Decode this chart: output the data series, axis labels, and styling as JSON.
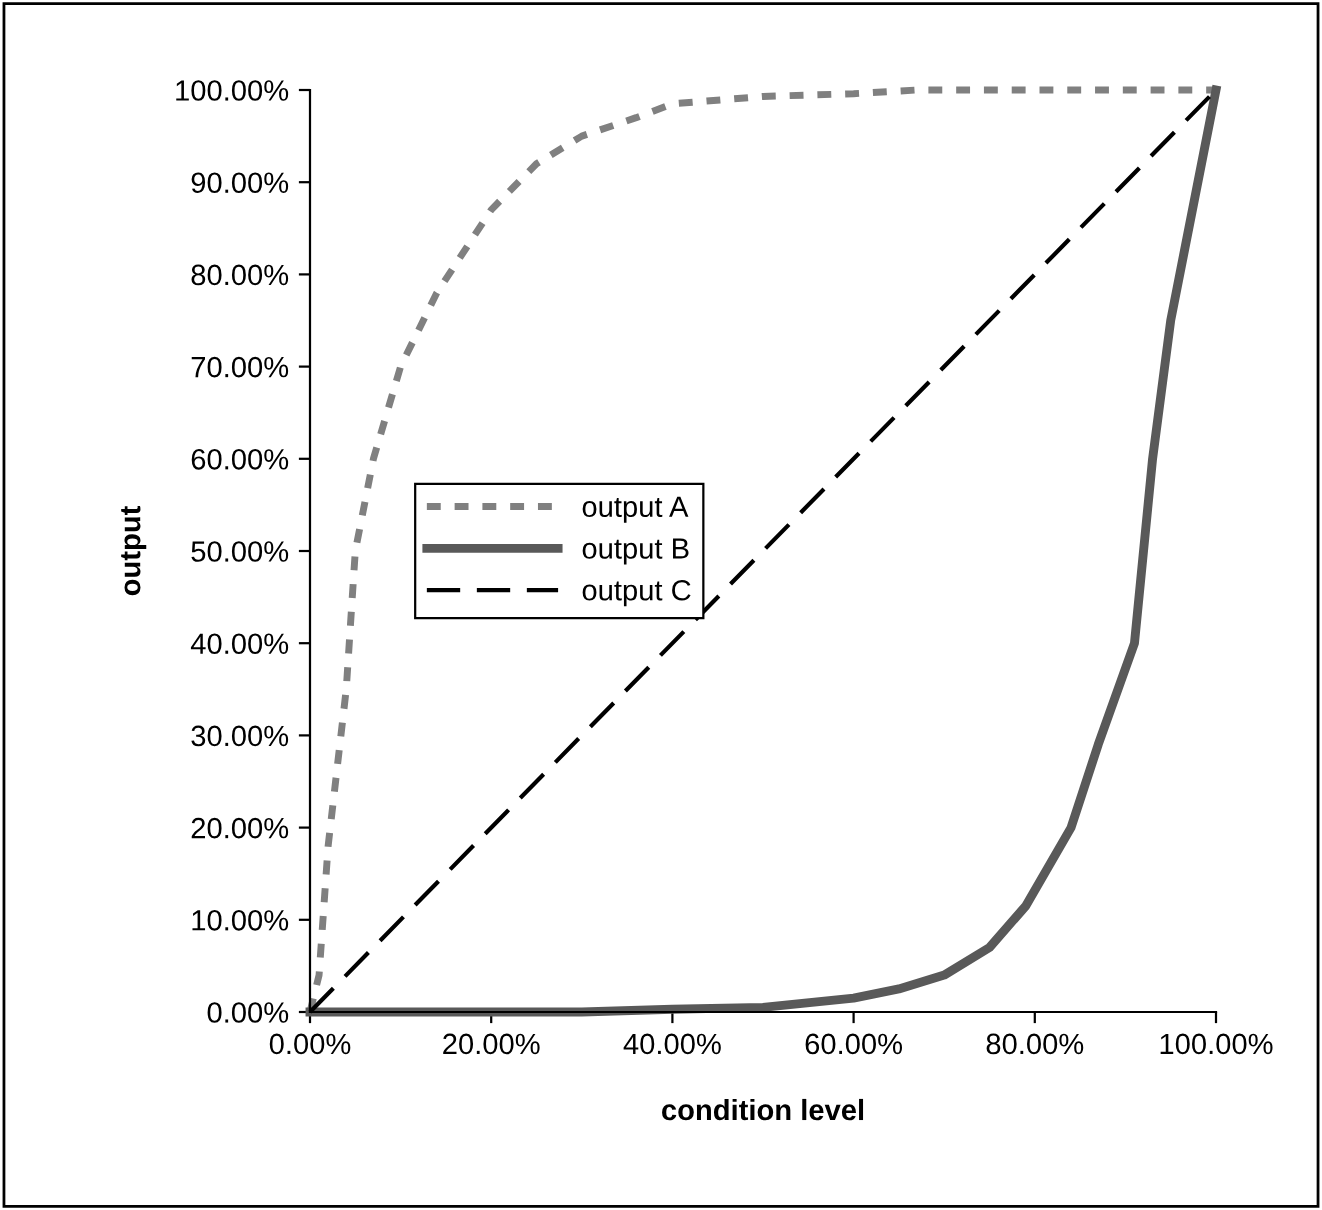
{
  "chart_data": {
    "type": "line",
    "xlabel": "condition level",
    "ylabel": "output",
    "xlim": [
      0,
      100
    ],
    "ylim": [
      0,
      100
    ],
    "xticks": [
      {
        "value": 0,
        "label": "0.00%"
      },
      {
        "value": 20,
        "label": "20.00%"
      },
      {
        "value": 40,
        "label": "40.00%"
      },
      {
        "value": 60,
        "label": "60.00%"
      },
      {
        "value": 80,
        "label": "80.00%"
      },
      {
        "value": 100,
        "label": "100.00%"
      }
    ],
    "yticks": [
      {
        "value": 0,
        "label": "0.00%"
      },
      {
        "value": 10,
        "label": "10.00%"
      },
      {
        "value": 20,
        "label": "20.00%"
      },
      {
        "value": 30,
        "label": "30.00%"
      },
      {
        "value": 40,
        "label": "40.00%"
      },
      {
        "value": 50,
        "label": "50.00%"
      },
      {
        "value": 60,
        "label": "60.00%"
      },
      {
        "value": 70,
        "label": "70.00%"
      },
      {
        "value": 80,
        "label": "80.00%"
      },
      {
        "value": 90,
        "label": "90.00%"
      },
      {
        "value": 100,
        "label": "100.00%"
      }
    ],
    "grid": false,
    "legend": "center left",
    "marker": "none",
    "series": [
      {
        "name": "output A",
        "color": "#808080",
        "line_style": "dotted",
        "x": [
          0,
          1,
          2,
          4,
          5,
          7,
          10,
          14,
          20,
          25,
          30,
          36,
          40,
          50,
          60,
          67,
          100
        ],
        "values": [
          0,
          4,
          18,
          35,
          50,
          60,
          70,
          78,
          87,
          92,
          95,
          97,
          98.5,
          99.3,
          99.6,
          100,
          100
        ]
      },
      {
        "name": "output B",
        "color": "#595959",
        "line_style": "solid",
        "x": [
          0,
          30,
          40,
          50,
          60,
          65,
          70,
          75,
          79,
          84,
          87,
          91,
          93,
          95,
          100
        ],
        "values": [
          0,
          0,
          0.3,
          0.5,
          1.5,
          2.5,
          4,
          7,
          11.5,
          20,
          29,
          40,
          60,
          75,
          100
        ]
      },
      {
        "name": "output C",
        "color": "#000000",
        "line_style": "dashed",
        "x": [
          0,
          100
        ],
        "values": [
          0,
          100
        ]
      }
    ]
  }
}
